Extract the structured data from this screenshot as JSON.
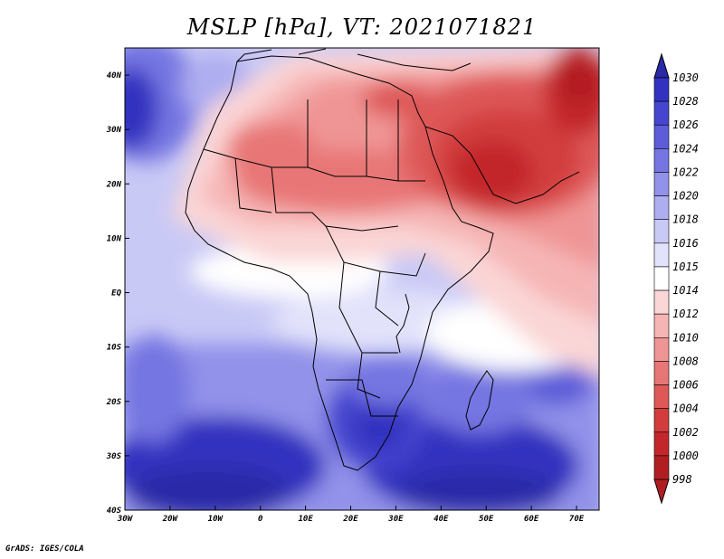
{
  "title": "MSLP [hPa], VT: 2021071821",
  "credit": "GrADS: IGES/COLA",
  "lon_ticks": [
    {
      "lon": -30,
      "label": "30W"
    },
    {
      "lon": -20,
      "label": "20W"
    },
    {
      "lon": -10,
      "label": "10W"
    },
    {
      "lon": 0,
      "label": "0"
    },
    {
      "lon": 10,
      "label": "10E"
    },
    {
      "lon": 20,
      "label": "20E"
    },
    {
      "lon": 30,
      "label": "30E"
    },
    {
      "lon": 40,
      "label": "40E"
    },
    {
      "lon": 50,
      "label": "50E"
    },
    {
      "lon": 60,
      "label": "60E"
    },
    {
      "lon": 70,
      "label": "70E"
    }
  ],
  "lat_ticks": [
    {
      "lat": 40,
      "label": "40N"
    },
    {
      "lat": 30,
      "label": "30N"
    },
    {
      "lat": 20,
      "label": "20N"
    },
    {
      "lat": 10,
      "label": "10N"
    },
    {
      "lat": 0,
      "label": "EQ"
    },
    {
      "lat": -10,
      "label": "10S"
    },
    {
      "lat": -20,
      "label": "20S"
    },
    {
      "lat": -30,
      "label": "30S"
    },
    {
      "lat": -40,
      "label": "40S"
    }
  ],
  "extent": {
    "lon_min": -30,
    "lon_max": 75,
    "lat_min": -40,
    "lat_max": 45
  },
  "colorbar": [
    {
      "label": "998",
      "color": "#b01e22"
    },
    {
      "label": "1000",
      "color": "#c3272b"
    },
    {
      "label": "1002",
      "color": "#d23c3c"
    },
    {
      "label": "1004",
      "color": "#de5858"
    },
    {
      "label": "1006",
      "color": "#e87676"
    },
    {
      "label": "1008",
      "color": "#f09595"
    },
    {
      "label": "1010",
      "color": "#f6b5b5"
    },
    {
      "label": "1012",
      "color": "#fbd6d6"
    },
    {
      "label": "1014",
      "color": "#ffffff"
    },
    {
      "label": "1015",
      "color": "#e2e2fb"
    },
    {
      "label": "1016",
      "color": "#c9c9f6"
    },
    {
      "label": "1018",
      "color": "#adadf0"
    },
    {
      "label": "1020",
      "color": "#9292ea"
    },
    {
      "label": "1022",
      "color": "#7676e2"
    },
    {
      "label": "1024",
      "color": "#5d5dd9"
    },
    {
      "label": "1026",
      "color": "#4545cf"
    },
    {
      "label": "1028",
      "color": "#3232c0"
    },
    {
      "label": "1030",
      "color": "#2a2aa8"
    }
  ],
  "colorbar_colors": {
    "low_end": "#b01e22",
    "high_end": "#2a2aa8"
  }
}
